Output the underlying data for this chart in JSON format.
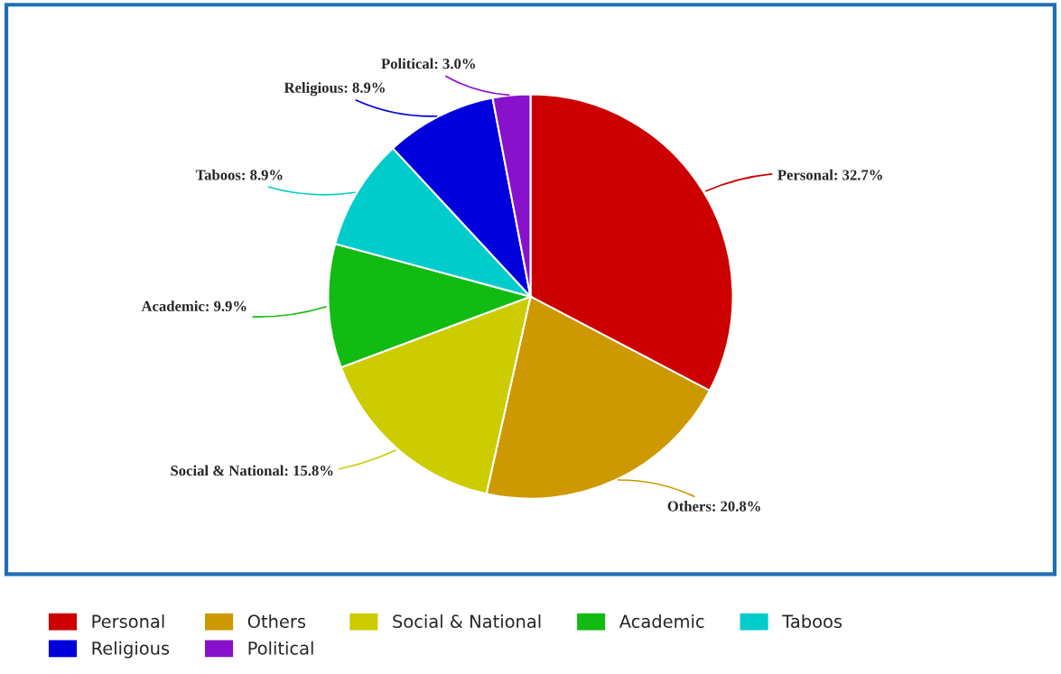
{
  "chart_data": {
    "type": "pie",
    "categories": [
      "Personal",
      "Others",
      "Social & National",
      "Academic",
      "Taboos",
      "Religious",
      "Political"
    ],
    "values": [
      32.7,
      20.8,
      15.8,
      9.9,
      8.9,
      8.9,
      3.0
    ],
    "colors": [
      "#cc0000",
      "#cc9900",
      "#cccc00",
      "#11bb11",
      "#00cccc",
      "#0000dd",
      "#8811cc"
    ],
    "value_labels": [
      "Personal: 32.7%",
      "Others: 20.8%",
      "Social & National: 15.8%",
      "Academic: 9.9%",
      "Taboos: 8.9%",
      "Religious: 8.9%",
      "Political: 3.0%"
    ],
    "legend": "bottom"
  }
}
